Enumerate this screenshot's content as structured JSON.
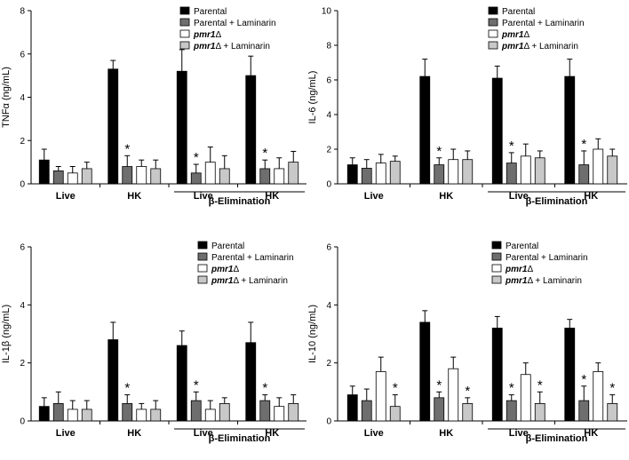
{
  "chart_data": [
    {
      "type": "bar",
      "ylabel": "TNFα (ng/mL)",
      "ylim": [
        0,
        8
      ],
      "yticks": [
        "0",
        "2",
        "4",
        "6",
        "8"
      ],
      "categories": [
        "Live",
        "HK",
        "Live",
        "HK"
      ],
      "group_label": "β-Elimination",
      "series": [
        {
          "name": "Parental",
          "values": [
            1.1,
            5.3,
            5.2,
            5.0
          ],
          "errors": [
            0.5,
            0.4,
            1.0,
            0.9
          ],
          "sig": [
            false,
            false,
            false,
            false
          ]
        },
        {
          "name": "Parental + Laminarin",
          "values": [
            0.6,
            0.8,
            0.5,
            0.7
          ],
          "errors": [
            0.2,
            0.5,
            0.4,
            0.4
          ],
          "sig": [
            false,
            true,
            true,
            true
          ]
        },
        {
          "name": "pmr1Δ",
          "values": [
            0.5,
            0.8,
            1.0,
            0.7
          ],
          "errors": [
            0.3,
            0.3,
            0.7,
            0.5
          ],
          "sig": [
            false,
            false,
            false,
            false
          ]
        },
        {
          "name": "pmr1Δ + Laminarin",
          "values": [
            0.7,
            0.7,
            0.7,
            1.0
          ],
          "errors": [
            0.3,
            0.4,
            0.6,
            0.5
          ],
          "sig": [
            false,
            false,
            false,
            false
          ]
        }
      ]
    },
    {
      "type": "bar",
      "ylabel": "IL-6 (ng/mL)",
      "ylim": [
        0,
        10
      ],
      "yticks": [
        "0",
        "2",
        "4",
        "6",
        "8",
        "10"
      ],
      "categories": [
        "Live",
        "HK",
        "Live",
        "HK"
      ],
      "group_label": "β-Elimination",
      "series": [
        {
          "name": "Parental",
          "values": [
            1.1,
            6.2,
            6.1,
            6.2
          ],
          "errors": [
            0.4,
            1.0,
            0.7,
            1.0
          ],
          "sig": [
            false,
            false,
            false,
            false
          ]
        },
        {
          "name": "Parental + Laminarin",
          "values": [
            0.9,
            1.1,
            1.2,
            1.1
          ],
          "errors": [
            0.5,
            0.4,
            0.6,
            0.8
          ],
          "sig": [
            false,
            true,
            true,
            true
          ]
        },
        {
          "name": "pmr1Δ",
          "values": [
            1.2,
            1.4,
            1.6,
            2.0
          ],
          "errors": [
            0.5,
            0.6,
            0.7,
            0.6
          ],
          "sig": [
            false,
            false,
            false,
            false
          ]
        },
        {
          "name": "pmr1Δ + Laminarin",
          "values": [
            1.3,
            1.4,
            1.5,
            1.6
          ],
          "errors": [
            0.3,
            0.5,
            0.4,
            0.4
          ],
          "sig": [
            false,
            false,
            false,
            false
          ]
        }
      ]
    },
    {
      "type": "bar",
      "ylabel": "IL-1β (ng/mL)",
      "ylim": [
        0,
        6
      ],
      "yticks": [
        "0",
        "2",
        "4",
        "6"
      ],
      "categories": [
        "Live",
        "HK",
        "Live",
        "HK"
      ],
      "group_label": "β-Elimination",
      "series": [
        {
          "name": "Parental",
          "values": [
            0.5,
            2.8,
            2.6,
            2.7
          ],
          "errors": [
            0.3,
            0.6,
            0.5,
            0.7
          ],
          "sig": [
            false,
            false,
            false,
            false
          ]
        },
        {
          "name": "Parental + Laminarin",
          "values": [
            0.6,
            0.6,
            0.7,
            0.7
          ],
          "errors": [
            0.4,
            0.3,
            0.3,
            0.2
          ],
          "sig": [
            false,
            true,
            true,
            true
          ]
        },
        {
          "name": "pmr1Δ",
          "values": [
            0.4,
            0.4,
            0.4,
            0.5
          ],
          "errors": [
            0.3,
            0.2,
            0.3,
            0.3
          ],
          "sig": [
            false,
            false,
            false,
            false
          ]
        },
        {
          "name": "pmr1Δ + Laminarin",
          "values": [
            0.4,
            0.4,
            0.6,
            0.6
          ],
          "errors": [
            0.3,
            0.3,
            0.2,
            0.3
          ],
          "sig": [
            false,
            false,
            false,
            false
          ]
        }
      ]
    },
    {
      "type": "bar",
      "ylabel": "IL-10 (ng/mL)",
      "ylim": [
        0,
        6
      ],
      "yticks": [
        "0",
        "2",
        "4",
        "6"
      ],
      "categories": [
        "Live",
        "HK",
        "Live",
        "HK"
      ],
      "group_label": "β-Elimination",
      "series": [
        {
          "name": "Parental",
          "values": [
            0.9,
            3.4,
            3.2,
            3.2
          ],
          "errors": [
            0.3,
            0.4,
            0.4,
            0.3
          ],
          "sig": [
            false,
            false,
            false,
            false
          ]
        },
        {
          "name": "Parental + Laminarin",
          "values": [
            0.7,
            0.8,
            0.7,
            0.7
          ],
          "errors": [
            0.4,
            0.2,
            0.2,
            0.5
          ],
          "sig": [
            false,
            true,
            true,
            true
          ]
        },
        {
          "name": "pmr1Δ",
          "values": [
            1.7,
            1.8,
            1.6,
            1.7
          ],
          "errors": [
            0.5,
            0.4,
            0.4,
            0.3
          ],
          "sig": [
            false,
            false,
            false,
            false
          ]
        },
        {
          "name": "pmr1Δ + Laminarin",
          "values": [
            0.5,
            0.6,
            0.6,
            0.6
          ],
          "errors": [
            0.4,
            0.2,
            0.4,
            0.3
          ],
          "sig": [
            true,
            true,
            true,
            true
          ]
        }
      ]
    }
  ],
  "colors": {
    "fills": [
      "#000000",
      "#6e6e6e",
      "#ffffff",
      "#c8c8c8"
    ],
    "stroke": "#000000"
  },
  "significance_mark": "*"
}
